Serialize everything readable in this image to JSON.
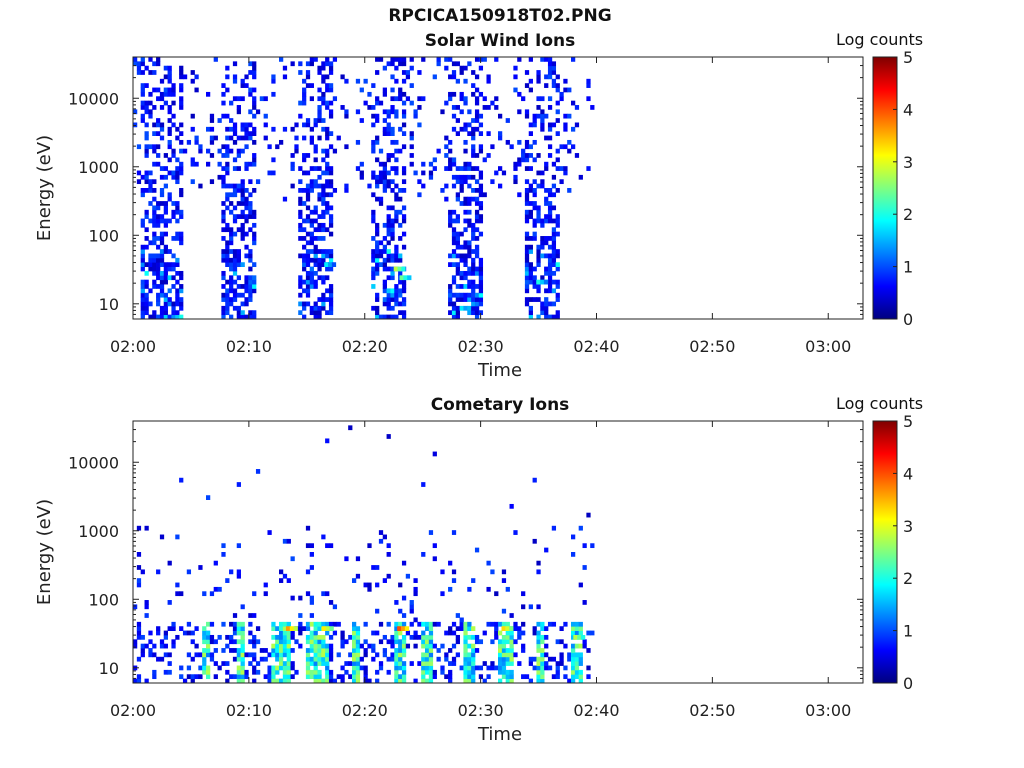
{
  "figure": {
    "title": "RPCICA150918T02.PNG"
  },
  "chart_data": [
    {
      "type": "heatmap",
      "title": "Solar Wind Ions",
      "xlabel": "Time",
      "ylabel": "Energy (eV)",
      "x_ticks": [
        "02:00",
        "02:10",
        "02:20",
        "02:30",
        "02:40",
        "02:50",
        "03:00"
      ],
      "x_range_minutes": [
        0,
        63
      ],
      "y_scale": "log",
      "y_ticks": [
        10,
        100,
        1000,
        10000
      ],
      "y_range": [
        6,
        40000
      ],
      "colorbar": {
        "label": "Log counts",
        "range": [
          0,
          5
        ],
        "ticks": [
          "0",
          "1",
          "2",
          "3",
          "4",
          "5"
        ],
        "colormap": "jet"
      },
      "data_extent_minutes": [
        0,
        39.5
      ],
      "dense_bursts_minutes": [
        [
          0.5,
          4
        ],
        [
          7.5,
          10.5
        ],
        [
          14,
          17
        ],
        [
          20.5,
          23.5
        ],
        [
          27,
          30
        ],
        [
          33.5,
          36.5
        ]
      ],
      "peak_log_counts": [
        [
          2.4,
          23,
          25
        ],
        [
          2.8,
          22.5,
          33
        ],
        [
          2.0,
          34.8,
          20
        ],
        [
          1.8,
          16.5,
          35
        ]
      ]
    },
    {
      "type": "heatmap",
      "title": "Cometary Ions",
      "xlabel": "Time",
      "ylabel": "Energy (eV)",
      "x_ticks": [
        "02:00",
        "02:10",
        "02:20",
        "02:30",
        "02:40",
        "02:50",
        "03:00"
      ],
      "x_range_minutes": [
        0,
        63
      ],
      "y_scale": "log",
      "y_ticks": [
        10,
        100,
        1000,
        10000
      ],
      "y_range": [
        6,
        40000
      ],
      "colorbar": {
        "label": "Log counts",
        "range": [
          0,
          5
        ],
        "ticks": [
          "0",
          "1",
          "2",
          "3",
          "4",
          "5"
        ],
        "colormap": "jet"
      },
      "data_extent_minutes": [
        0,
        39.5
      ],
      "low_energy_bands_minutes": [
        [
          5.8,
          6.4
        ],
        [
          8.8,
          9.5
        ],
        [
          11.8,
          13.4
        ],
        [
          14.8,
          16.7
        ],
        [
          18.8,
          19.3
        ],
        [
          22.4,
          23.3
        ],
        [
          24.8,
          25.8
        ],
        [
          28.3,
          29.3
        ],
        [
          31.3,
          32.8
        ],
        [
          34.5,
          35.3
        ],
        [
          37.5,
          38.5
        ]
      ],
      "peak_log_counts": [
        [
          4.0,
          22.8,
          35
        ],
        [
          3.6,
          13.2,
          35
        ],
        [
          3.3,
          31.8,
          35
        ],
        [
          3.2,
          16.3,
          35
        ],
        [
          2.8,
          38.0,
          30
        ]
      ]
    }
  ]
}
